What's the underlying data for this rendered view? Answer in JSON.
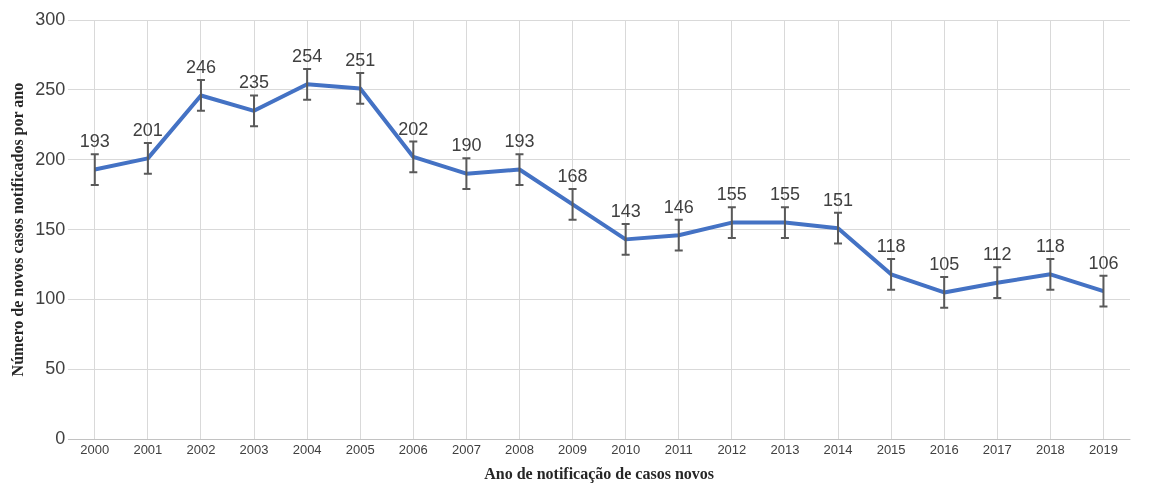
{
  "chart_data": {
    "type": "line",
    "xlabel": "Ano de notificação de casos novos",
    "ylabel": "Número de novos casos notificados por ano",
    "categories": [
      "2000",
      "2001",
      "2002",
      "2003",
      "2004",
      "2005",
      "2006",
      "2007",
      "2008",
      "2009",
      "2010",
      "2011",
      "2012",
      "2013",
      "2014",
      "2015",
      "2016",
      "2017",
      "2018",
      "2019"
    ],
    "series": [
      {
        "color": "#4472c4",
        "values": [
          193,
          201,
          246,
          235,
          254,
          251,
          202,
          190,
          193,
          168,
          143,
          146,
          155,
          155,
          151,
          118,
          105,
          112,
          118,
          106
        ],
        "errors": [
          11,
          11,
          11,
          11,
          11,
          11,
          11,
          11,
          11,
          11,
          11,
          11,
          11,
          11,
          11,
          11,
          11,
          11,
          11,
          11
        ]
      }
    ],
    "ylim": [
      0,
      300
    ],
    "yticks": [
      0,
      50,
      100,
      150,
      200,
      250,
      300
    ],
    "grid": true,
    "legend": false,
    "marker": "none",
    "line_style": "solid",
    "data_labels": true
  }
}
